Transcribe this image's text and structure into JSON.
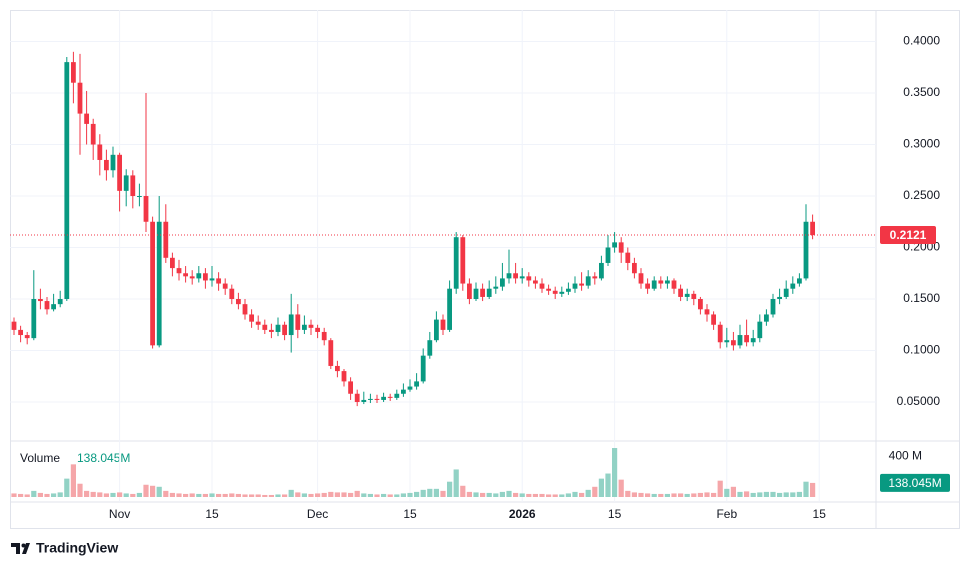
{
  "chart_data": {
    "type": "candlestick",
    "categories": [
      null,
      null,
      null,
      null,
      null,
      null,
      null,
      null,
      null,
      null,
      null,
      null,
      null,
      null,
      null,
      null,
      "Nov",
      null,
      null,
      null,
      null,
      null,
      null,
      null,
      null,
      null,
      null,
      null,
      null,
      null,
      "15",
      null,
      null,
      null,
      null,
      null,
      null,
      null,
      null,
      null,
      null,
      null,
      null,
      null,
      null,
      null,
      "Dec",
      null,
      null,
      null,
      null,
      null,
      null,
      null,
      null,
      null,
      null,
      null,
      null,
      null,
      "15",
      null,
      null,
      null,
      null,
      null,
      null,
      null,
      null,
      null,
      null,
      null,
      null,
      null,
      null,
      null,
      null,
      "2026",
      null,
      null,
      null,
      null,
      null,
      null,
      null,
      null,
      null,
      null,
      null,
      null,
      null,
      "15",
      null,
      null,
      null,
      null,
      null,
      null,
      null,
      null,
      null,
      null,
      null,
      null,
      null,
      null,
      null,
      null,
      "Feb",
      null,
      null,
      null,
      null,
      null,
      null,
      null,
      null,
      null,
      null,
      null,
      null,
      null,
      "15"
    ],
    "open": [
      0.128,
      0.12,
      0.115,
      0.112,
      0.15,
      0.148,
      0.14,
      0.145,
      0.15,
      0.38,
      0.36,
      0.33,
      0.32,
      0.3,
      0.285,
      0.275,
      0.29,
      0.255,
      0.27,
      0.25,
      0.25,
      0.225,
      0.105,
      0.225,
      0.19,
      0.18,
      0.175,
      0.172,
      0.17,
      0.175,
      0.168,
      0.17,
      0.165,
      0.16,
      0.15,
      0.145,
      0.135,
      0.128,
      0.125,
      0.12,
      0.118,
      0.125,
      0.115,
      0.135,
      0.12,
      0.125,
      0.122,
      0.118,
      0.11,
      0.085,
      0.08,
      0.07,
      0.058,
      0.05,
      0.052,
      0.053,
      0.052,
      0.055,
      0.054,
      0.058,
      0.062,
      0.065,
      0.07,
      0.095,
      0.11,
      0.13,
      0.12,
      0.16,
      0.21,
      0.165,
      0.15,
      0.16,
      0.152,
      0.16,
      0.162,
      0.17,
      0.175,
      0.17,
      0.172,
      0.168,
      0.165,
      0.16,
      0.158,
      0.155,
      0.157,
      0.16,
      0.165,
      0.163,
      0.172,
      0.17,
      0.185,
      0.2,
      0.205,
      0.195,
      0.185,
      0.175,
      0.165,
      0.16,
      0.168,
      0.165,
      0.168,
      0.16,
      0.152,
      0.155,
      0.15,
      0.14,
      0.135,
      0.125,
      0.108,
      0.11,
      0.105,
      0.115,
      0.108,
      0.112,
      0.128,
      0.135,
      0.15,
      0.152,
      0.16,
      0.165,
      0.17,
      0.225,
      null
    ],
    "high": [
      0.132,
      0.124,
      0.118,
      0.178,
      0.16,
      0.152,
      0.155,
      0.158,
      0.385,
      0.39,
      0.388,
      0.352,
      0.325,
      0.31,
      0.295,
      0.298,
      0.292,
      0.276,
      0.275,
      0.262,
      0.35,
      0.23,
      0.25,
      0.242,
      0.195,
      0.188,
      0.182,
      0.178,
      0.182,
      0.18,
      0.182,
      0.176,
      0.17,
      0.164,
      0.156,
      0.15,
      0.14,
      0.134,
      0.13,
      0.126,
      0.132,
      0.128,
      0.155,
      0.145,
      0.134,
      0.13,
      0.125,
      0.122,
      0.112,
      0.09,
      0.082,
      0.074,
      0.062,
      0.06,
      0.058,
      0.057,
      0.059,
      0.058,
      0.062,
      0.068,
      0.072,
      0.078,
      0.102,
      0.118,
      0.138,
      0.135,
      0.168,
      0.215,
      0.212,
      0.17,
      0.166,
      0.165,
      0.168,
      0.172,
      0.185,
      0.198,
      0.185,
      0.18,
      0.176,
      0.172,
      0.17,
      0.164,
      0.162,
      0.162,
      0.166,
      0.172,
      0.176,
      0.178,
      0.176,
      0.192,
      0.212,
      0.215,
      0.21,
      0.2,
      0.19,
      0.18,
      0.17,
      0.172,
      0.172,
      0.172,
      0.17,
      0.164,
      0.16,
      0.158,
      0.152,
      0.145,
      0.138,
      0.128,
      0.122,
      0.118,
      0.125,
      0.13,
      0.12,
      0.135,
      0.14,
      0.155,
      0.16,
      0.168,
      0.172,
      0.175,
      0.242,
      0.232,
      null
    ],
    "low": [
      0.115,
      0.108,
      0.106,
      0.11,
      0.14,
      0.135,
      0.138,
      0.142,
      0.148,
      0.34,
      0.29,
      0.3,
      0.285,
      0.27,
      0.265,
      0.268,
      0.235,
      0.24,
      0.238,
      0.24,
      0.215,
      0.102,
      0.103,
      0.185,
      0.172,
      0.168,
      0.166,
      0.164,
      0.166,
      0.16,
      0.162,
      0.158,
      0.154,
      0.145,
      0.14,
      0.13,
      0.122,
      0.12,
      0.116,
      0.112,
      0.114,
      0.11,
      0.098,
      0.112,
      0.116,
      0.115,
      0.112,
      0.105,
      0.082,
      0.074,
      0.065,
      0.052,
      0.046,
      0.048,
      0.049,
      0.049,
      0.05,
      0.051,
      0.052,
      0.055,
      0.06,
      0.062,
      0.068,
      0.092,
      0.108,
      0.115,
      0.118,
      0.155,
      0.158,
      0.145,
      0.148,
      0.148,
      0.15,
      0.155,
      0.158,
      0.165,
      0.165,
      0.165,
      0.162,
      0.16,
      0.156,
      0.154,
      0.15,
      0.152,
      0.154,
      0.156,
      0.158,
      0.16,
      0.164,
      0.168,
      0.182,
      0.195,
      0.185,
      0.178,
      0.17,
      0.16,
      0.155,
      0.158,
      0.16,
      0.16,
      0.155,
      0.148,
      0.148,
      0.144,
      0.135,
      0.128,
      0.12,
      0.102,
      0.103,
      0.1,
      0.102,
      0.104,
      0.104,
      0.108,
      0.124,
      0.132,
      0.145,
      0.15,
      0.155,
      0.162,
      0.168,
      0.208,
      null
    ],
    "close": [
      0.12,
      0.115,
      0.112,
      0.15,
      0.148,
      0.14,
      0.145,
      0.15,
      0.38,
      0.36,
      0.33,
      0.32,
      0.3,
      0.285,
      0.275,
      0.29,
      0.255,
      0.27,
      0.25,
      0.25,
      0.225,
      0.105,
      0.225,
      0.19,
      0.18,
      0.175,
      0.172,
      0.17,
      0.175,
      0.168,
      0.17,
      0.165,
      0.16,
      0.15,
      0.145,
      0.135,
      0.128,
      0.125,
      0.12,
      0.118,
      0.125,
      0.115,
      0.135,
      0.12,
      0.125,
      0.122,
      0.118,
      0.11,
      0.085,
      0.08,
      0.07,
      0.058,
      0.05,
      0.052,
      0.053,
      0.052,
      0.055,
      0.054,
      0.058,
      0.062,
      0.065,
      0.07,
      0.095,
      0.11,
      0.13,
      0.12,
      0.16,
      0.21,
      0.165,
      0.15,
      0.16,
      0.152,
      0.16,
      0.162,
      0.17,
      0.175,
      0.17,
      0.172,
      0.168,
      0.165,
      0.16,
      0.158,
      0.155,
      0.157,
      0.16,
      0.165,
      0.163,
      0.172,
      0.17,
      0.185,
      0.2,
      0.205,
      0.195,
      0.185,
      0.175,
      0.165,
      0.16,
      0.168,
      0.165,
      0.168,
      0.16,
      0.152,
      0.155,
      0.15,
      0.14,
      0.135,
      0.125,
      0.108,
      0.11,
      0.105,
      0.115,
      0.108,
      0.112,
      0.128,
      0.135,
      0.15,
      0.152,
      0.16,
      0.165,
      0.17,
      0.225,
      0.2121,
      null
    ],
    "volume": [
      35,
      30,
      25,
      60,
      40,
      30,
      35,
      45,
      180,
      320,
      130,
      60,
      50,
      45,
      35,
      40,
      45,
      35,
      30,
      40,
      120,
      110,
      100,
      60,
      40,
      35,
      30,
      35,
      30,
      30,
      35,
      30,
      30,
      35,
      30,
      25,
      25,
      25,
      20,
      20,
      25,
      25,
      70,
      45,
      35,
      30,
      35,
      40,
      50,
      45,
      45,
      40,
      60,
      35,
      30,
      25,
      30,
      25,
      25,
      35,
      40,
      50,
      70,
      80,
      80,
      60,
      150,
      270,
      110,
      50,
      45,
      40,
      40,
      35,
      50,
      60,
      40,
      35,
      30,
      30,
      30,
      25,
      25,
      25,
      35,
      50,
      40,
      70,
      100,
      180,
      230,
      480,
      170,
      60,
      45,
      40,
      35,
      30,
      30,
      30,
      35,
      35,
      30,
      35,
      40,
      45,
      40,
      160,
      80,
      100,
      50,
      55,
      40,
      45,
      50,
      50,
      40,
      45,
      45,
      50,
      150,
      138.045,
      null
    ],
    "up_color": "#089981",
    "down_color": "#f23645",
    "volume_up_color": "#92d2c5",
    "volume_down_color": "#f5a6a9",
    "ylim": [
      0.0131,
      0.4306
    ],
    "yticks": [
      {
        "value": 0.05,
        "label": "0.05000"
      },
      {
        "value": 0.1,
        "label": "0.1000"
      },
      {
        "value": 0.15,
        "label": "0.1500"
      },
      {
        "value": 0.2,
        "label": "0.2000"
      },
      {
        "value": 0.25,
        "label": "0.2500"
      },
      {
        "value": 0.3,
        "label": "0.3000"
      },
      {
        "value": 0.35,
        "label": "0.3500"
      },
      {
        "value": 0.4,
        "label": "0.4000"
      }
    ],
    "volume_ylim": [
      0,
      490
    ],
    "volume_yticks": [
      {
        "value": 400,
        "label": "400 M"
      }
    ],
    "volume_title": "Volume",
    "volume_last_label": "138.045M",
    "grid": true,
    "brand": "TradingView"
  }
}
